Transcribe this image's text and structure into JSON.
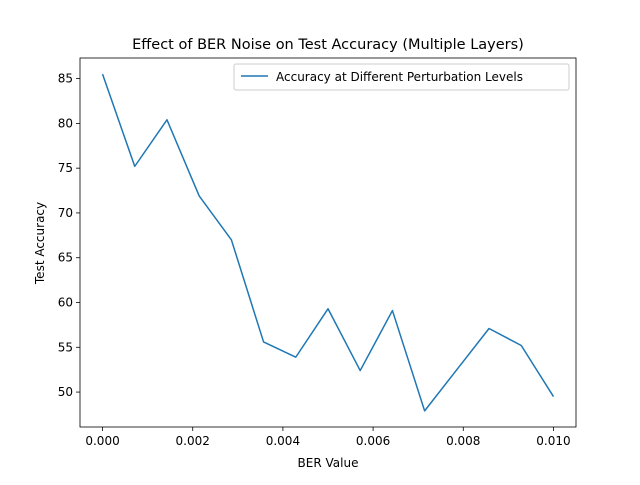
{
  "chart_data": {
    "type": "line",
    "title": "Effect of BER Noise on Test Accuracy (Multiple Layers)",
    "xlabel": "BER Value",
    "ylabel": "Test Accuracy",
    "xlim": [
      -0.0005,
      0.0105
    ],
    "ylim": [
      46.1,
      87.3
    ],
    "xticks": [
      0.0,
      0.002,
      0.004,
      0.006,
      0.008,
      0.01
    ],
    "xtick_labels": [
      "0.000",
      "0.002",
      "0.004",
      "0.006",
      "0.008",
      "0.010"
    ],
    "yticks": [
      50,
      55,
      60,
      65,
      70,
      75,
      80,
      85
    ],
    "ytick_labels": [
      "50",
      "55",
      "60",
      "65",
      "70",
      "75",
      "80",
      "85"
    ],
    "grid": false,
    "legend_position": "top-right",
    "colors": {
      "series": "#1f77b4"
    },
    "series": [
      {
        "name": "Accuracy at Different Perturbation Levels",
        "x": [
          0.0,
          0.000714,
          0.001429,
          0.002143,
          0.002857,
          0.003571,
          0.004286,
          0.005,
          0.005714,
          0.006429,
          0.007143,
          0.007857,
          0.008571,
          0.009286,
          0.01
        ],
        "y": [
          85.5,
          75.2,
          80.4,
          71.9,
          67.0,
          55.6,
          53.9,
          59.3,
          52.4,
          59.1,
          47.9,
          52.5,
          57.1,
          55.2,
          49.5
        ]
      }
    ]
  }
}
